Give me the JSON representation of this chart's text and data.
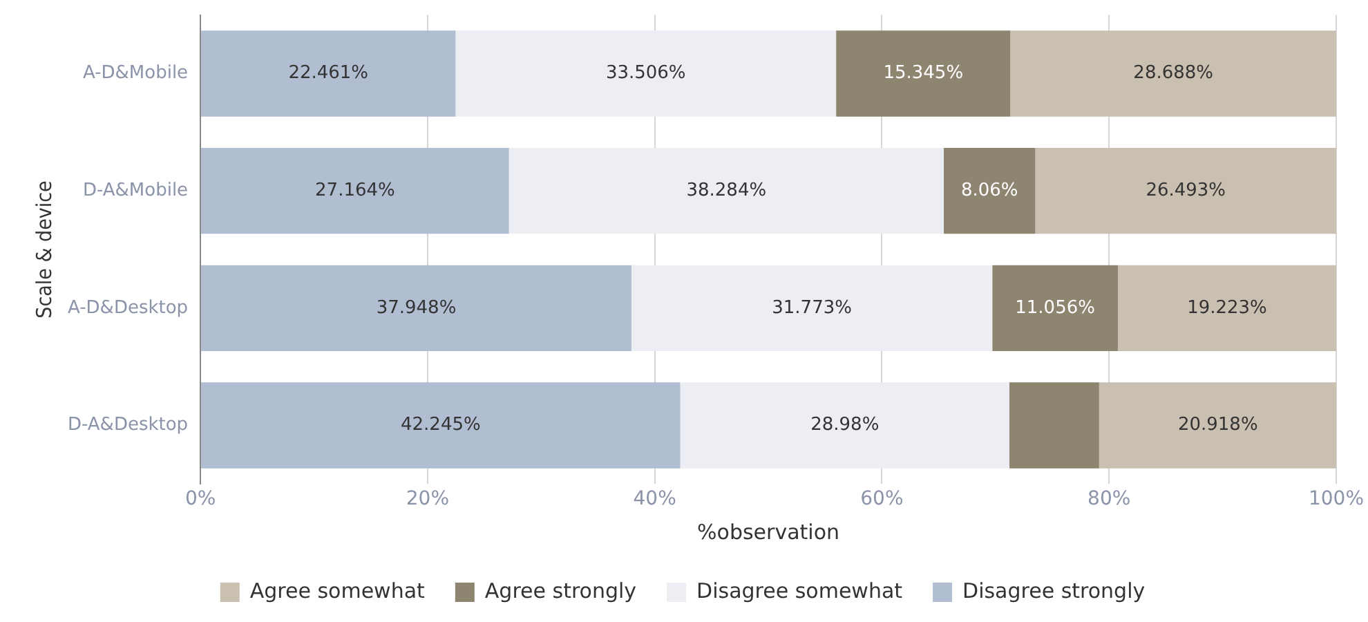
{
  "chart_data": {
    "type": "bar",
    "orientation": "horizontal",
    "stacked": true,
    "xlabel": "%observation",
    "ylabel": "Scale & device",
    "categories": [
      "A-D&Mobile",
      "D-A&Mobile",
      "A-D&Desktop",
      "D-A&Desktop"
    ],
    "series": [
      {
        "name": "Disagree strongly",
        "color": "#b1bdd1",
        "values": [
          22.461,
          27.164,
          37.948,
          42.245
        ],
        "value_labels": [
          "22.461%",
          "27.164%",
          "37.948%",
          "42.245%"
        ]
      },
      {
        "name": "Disagree somewhat",
        "color": "#eceef3",
        "values": [
          33.506,
          38.284,
          31.773,
          28.98
        ],
        "value_labels": [
          "33.506%",
          "38.284%",
          "31.773%",
          "28.98%"
        ]
      },
      {
        "name": "Agree strongly",
        "color": "#8e8571",
        "values": [
          15.345,
          8.06,
          11.056,
          7.9
        ],
        "value_labels": [
          "15.345%",
          "8.06%",
          "11.056%",
          null
        ]
      },
      {
        "name": "Agree somewhat",
        "color": "#c9c0b1",
        "values": [
          28.688,
          26.493,
          19.223,
          20.918
        ],
        "value_labels": [
          "28.688%",
          "26.493%",
          "19.223%",
          "20.918%"
        ]
      }
    ],
    "xlim": [
      0,
      100
    ],
    "xticks": [
      {
        "value": 0,
        "label": "0%"
      },
      {
        "value": 20,
        "label": "20%"
      },
      {
        "value": 40,
        "label": "40%"
      },
      {
        "value": 60,
        "label": "60%"
      },
      {
        "value": 80,
        "label": "80%"
      },
      {
        "value": 100,
        "label": "100%"
      }
    ],
    "grid": "x",
    "legend": "bottom"
  }
}
